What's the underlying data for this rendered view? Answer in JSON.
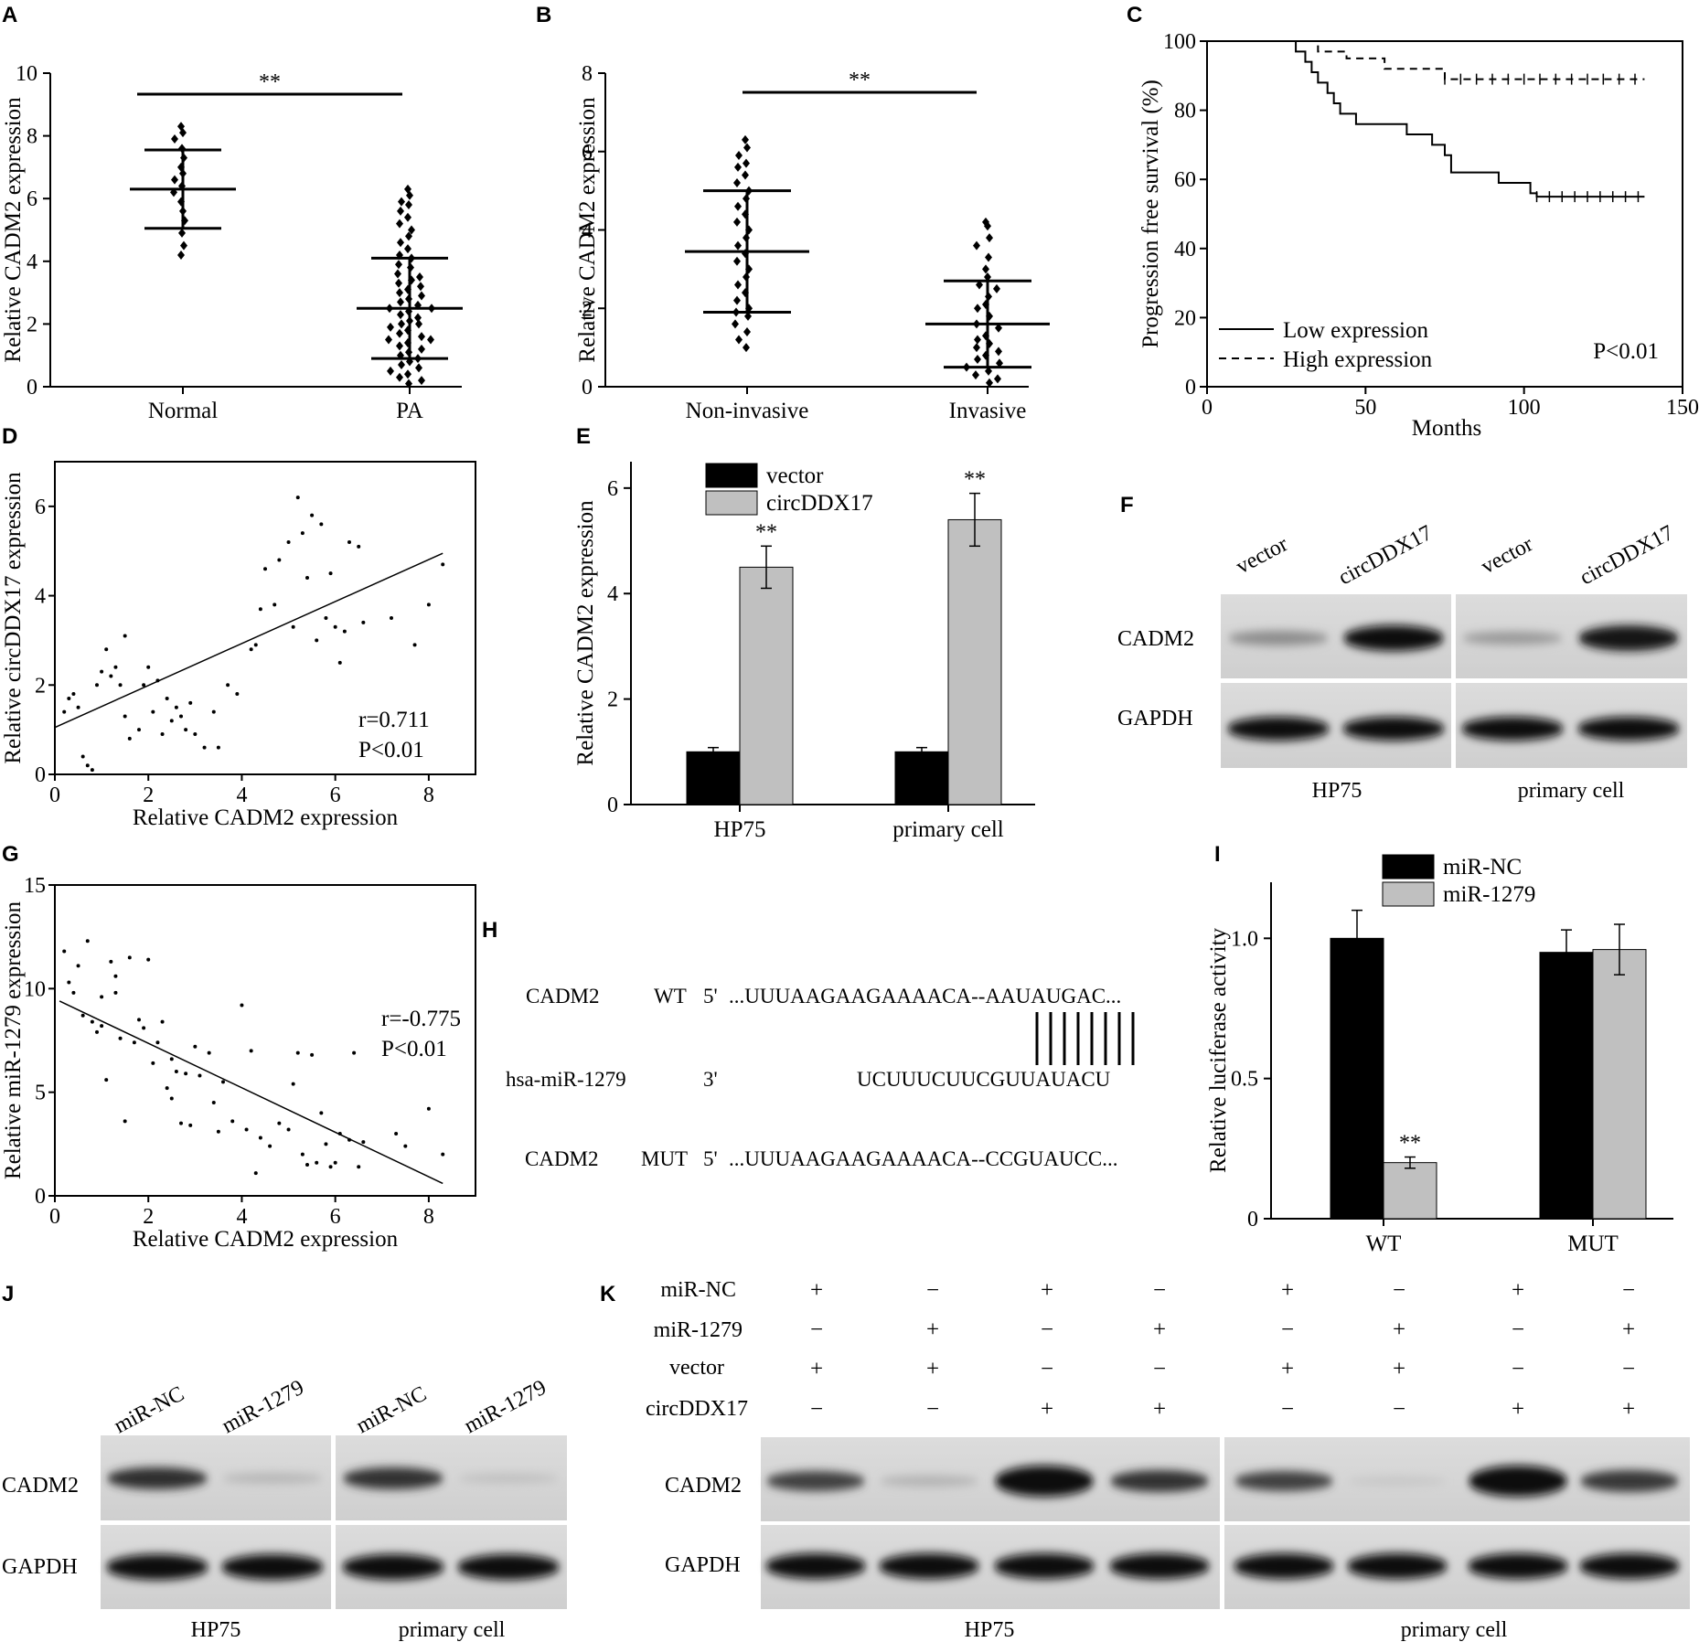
{
  "chart_data": [
    {
      "panel": "A",
      "type": "scatter",
      "ylabel": "Relative CADM2 expression",
      "categories": [
        "Normal",
        "PA"
      ],
      "ylim": [
        0,
        10
      ],
      "yticks": [
        0,
        2,
        4,
        6,
        8,
        10
      ],
      "significance": "**",
      "groups": [
        {
          "name": "Normal",
          "mean": 6.3,
          "sd": 1.25,
          "points": [
            8.3,
            8.1,
            7.9,
            7.6,
            7.3,
            7.0,
            6.8,
            6.6,
            6.4,
            6.2,
            5.9,
            5.6,
            5.3,
            4.9,
            4.5,
            4.2
          ]
        },
        {
          "name": "PA",
          "mean": 2.5,
          "sd": 1.6,
          "points": [
            6.3,
            6.1,
            5.9,
            5.8,
            5.6,
            5.4,
            5.2,
            5.0,
            4.8,
            4.6,
            4.4,
            4.2,
            4.1,
            3.9,
            3.8,
            3.6,
            3.5,
            3.4,
            3.3,
            3.2,
            3.1,
            3.0,
            2.9,
            2.8,
            2.7,
            2.6,
            2.5,
            2.5,
            2.4,
            2.3,
            2.2,
            2.1,
            2.0,
            2.0,
            1.9,
            1.8,
            1.7,
            1.6,
            1.5,
            1.5,
            1.4,
            1.3,
            1.2,
            1.1,
            1.0,
            0.9,
            0.8,
            0.7,
            0.6,
            0.5,
            0.4,
            0.3,
            0.2,
            0.1
          ]
        }
      ]
    },
    {
      "panel": "B",
      "type": "scatter",
      "ylabel": "Relative CADM2 expression",
      "categories": [
        "Non-invasive",
        "Invasive"
      ],
      "ylim": [
        0,
        8
      ],
      "yticks": [
        0,
        2,
        4,
        6,
        8
      ],
      "significance": "**",
      "groups": [
        {
          "name": "Non-invasive",
          "mean": 3.45,
          "sd": 1.55,
          "points": [
            6.3,
            6.1,
            5.9,
            5.7,
            5.6,
            5.4,
            5.2,
            5.0,
            4.8,
            4.6,
            4.4,
            4.2,
            4.0,
            3.8,
            3.6,
            3.4,
            3.2,
            3.0,
            2.8,
            2.6,
            2.4,
            2.2,
            2.0,
            1.9,
            1.8,
            1.6,
            1.4,
            1.2,
            1.0
          ]
        },
        {
          "name": "Invasive",
          "mean": 1.6,
          "sd": 1.1,
          "points": [
            4.2,
            4.1,
            3.8,
            3.6,
            3.3,
            3.0,
            2.8,
            2.6,
            2.5,
            2.3,
            2.1,
            2.0,
            1.8,
            1.6,
            1.5,
            1.3,
            1.2,
            1.1,
            1.0,
            0.9,
            0.8,
            0.7,
            0.6,
            0.5,
            0.4,
            0.3,
            0.2,
            0.1
          ]
        }
      ]
    },
    {
      "panel": "C",
      "type": "line",
      "xlabel": "Months",
      "ylabel": "Progression free survival (%)",
      "xlim": [
        0,
        150
      ],
      "ylim": [
        0,
        100
      ],
      "xticks": [
        0,
        50,
        100,
        150
      ],
      "yticks": [
        0,
        20,
        40,
        60,
        80,
        100
      ],
      "annotation": "P<0.01",
      "series": [
        {
          "name": "Low expression",
          "style": "solid",
          "x": [
            0,
            24,
            28,
            31,
            33,
            35,
            38,
            40,
            42,
            44,
            47,
            52,
            63,
            66,
            71,
            75,
            77,
            85,
            92,
            96,
            102,
            104,
            138
          ],
          "y": [
            100,
            100,
            97,
            94,
            91,
            88,
            85,
            82,
            79,
            79,
            76,
            76,
            73,
            73,
            70,
            67,
            62,
            62,
            59,
            59,
            56,
            55,
            55
          ]
        },
        {
          "name": "High expression",
          "style": "dashed",
          "x": [
            0,
            28,
            35,
            44,
            56,
            75,
            138
          ],
          "y": [
            100,
            100,
            97,
            95,
            92,
            89,
            89
          ]
        }
      ]
    },
    {
      "panel": "D",
      "type": "scatter",
      "xlabel": "Relative CADM2 expression",
      "ylabel": "Relative circDDX17 expression",
      "xlim": [
        0,
        9
      ],
      "ylim": [
        0,
        7
      ],
      "xticks": [
        0,
        2,
        4,
        6,
        8
      ],
      "yticks": [
        0,
        2,
        4,
        6
      ],
      "annotations": [
        "r=0.711",
        "P<0.01"
      ],
      "fit": {
        "x": [
          0,
          8.3
        ],
        "y": [
          1.05,
          4.95
        ]
      },
      "points": [
        [
          0.2,
          1.4
        ],
        [
          0.3,
          1.7
        ],
        [
          0.4,
          1.8
        ],
        [
          0.5,
          1.5
        ],
        [
          0.6,
          0.4
        ],
        [
          0.7,
          0.2
        ],
        [
          0.8,
          0.1
        ],
        [
          0.9,
          2.0
        ],
        [
          1.0,
          2.3
        ],
        [
          1.1,
          2.8
        ],
        [
          1.2,
          2.2
        ],
        [
          1.3,
          2.4
        ],
        [
          1.4,
          2.0
        ],
        [
          1.5,
          3.1
        ],
        [
          1.5,
          1.3
        ],
        [
          1.6,
          0.8
        ],
        [
          1.8,
          1.0
        ],
        [
          1.9,
          2.0
        ],
        [
          2.0,
          2.4
        ],
        [
          2.1,
          1.4
        ],
        [
          2.2,
          2.1
        ],
        [
          2.3,
          0.9
        ],
        [
          2.4,
          1.7
        ],
        [
          2.5,
          1.2
        ],
        [
          2.6,
          1.5
        ],
        [
          2.7,
          1.3
        ],
        [
          2.8,
          1.0
        ],
        [
          2.9,
          1.6
        ],
        [
          3.0,
          0.9
        ],
        [
          3.2,
          0.6
        ],
        [
          3.4,
          1.4
        ],
        [
          3.5,
          0.6
        ],
        [
          3.7,
          2.0
        ],
        [
          3.9,
          1.8
        ],
        [
          4.2,
          2.8
        ],
        [
          4.3,
          2.9
        ],
        [
          4.4,
          3.7
        ],
        [
          4.5,
          4.6
        ],
        [
          4.7,
          3.8
        ],
        [
          4.8,
          4.8
        ],
        [
          5.0,
          5.2
        ],
        [
          5.1,
          3.3
        ],
        [
          5.2,
          6.2
        ],
        [
          5.3,
          5.4
        ],
        [
          5.4,
          4.4
        ],
        [
          5.5,
          5.8
        ],
        [
          5.6,
          3.0
        ],
        [
          5.7,
          5.6
        ],
        [
          5.8,
          3.5
        ],
        [
          5.9,
          4.5
        ],
        [
          6.0,
          3.3
        ],
        [
          6.1,
          2.5
        ],
        [
          6.2,
          3.2
        ],
        [
          6.3,
          5.2
        ],
        [
          6.5,
          5.1
        ],
        [
          6.6,
          3.4
        ],
        [
          7.2,
          3.5
        ],
        [
          7.7,
          2.9
        ],
        [
          8.0,
          3.8
        ],
        [
          8.3,
          4.7
        ]
      ]
    },
    {
      "panel": "E",
      "type": "bar",
      "ylabel": "Relative CADM2 expression",
      "categories": [
        "HP75",
        "primary cell"
      ],
      "ylim": [
        0,
        6.5
      ],
      "yticks": [
        0,
        2,
        4,
        6
      ],
      "series": [
        {
          "name": "vector",
          "color": "#000000",
          "values": [
            1.0,
            1.0
          ],
          "errors": [
            0.08,
            0.08
          ]
        },
        {
          "name": "circDDX17",
          "color": "#c0c0c0",
          "values": [
            4.5,
            5.4
          ],
          "errors": [
            0.4,
            0.5
          ],
          "significance": [
            "**",
            "**"
          ]
        }
      ]
    },
    {
      "panel": "G",
      "type": "scatter",
      "xlabel": "Relative CADM2 expression",
      "ylabel": "Relative miR-1279 expression",
      "xlim": [
        0,
        9
      ],
      "ylim": [
        0,
        15
      ],
      "xticks": [
        0,
        2,
        4,
        6,
        8
      ],
      "yticks": [
        0,
        5,
        10,
        15
      ],
      "annotations": [
        "r=-0.775",
        "P<0.01"
      ],
      "fit": {
        "x": [
          0.1,
          8.3
        ],
        "y": [
          9.4,
          0.6
        ]
      },
      "points": [
        [
          0.2,
          11.8
        ],
        [
          0.3,
          10.3
        ],
        [
          0.4,
          9.8
        ],
        [
          0.5,
          11.1
        ],
        [
          0.6,
          8.7
        ],
        [
          0.7,
          12.3
        ],
        [
          0.8,
          8.4
        ],
        [
          0.9,
          7.9
        ],
        [
          1.0,
          8.2
        ],
        [
          1.0,
          9.6
        ],
        [
          1.1,
          5.6
        ],
        [
          1.2,
          11.3
        ],
        [
          1.3,
          10.6
        ],
        [
          1.3,
          9.8
        ],
        [
          1.4,
          7.6
        ],
        [
          1.5,
          3.6
        ],
        [
          1.6,
          11.5
        ],
        [
          1.7,
          7.4
        ],
        [
          1.8,
          8.5
        ],
        [
          1.9,
          8.1
        ],
        [
          2.0,
          11.4
        ],
        [
          2.1,
          6.4
        ],
        [
          2.2,
          7.4
        ],
        [
          2.3,
          8.4
        ],
        [
          2.4,
          5.2
        ],
        [
          2.5,
          6.6
        ],
        [
          2.5,
          4.7
        ],
        [
          2.6,
          6.0
        ],
        [
          2.7,
          3.5
        ],
        [
          2.8,
          5.9
        ],
        [
          2.9,
          3.4
        ],
        [
          3.0,
          7.2
        ],
        [
          3.1,
          5.8
        ],
        [
          3.3,
          6.9
        ],
        [
          3.4,
          4.5
        ],
        [
          3.5,
          3.1
        ],
        [
          3.6,
          5.5
        ],
        [
          3.8,
          3.6
        ],
        [
          4.0,
          9.2
        ],
        [
          4.1,
          3.2
        ],
        [
          4.2,
          7.0
        ],
        [
          4.3,
          1.1
        ],
        [
          4.4,
          2.8
        ],
        [
          4.6,
          2.4
        ],
        [
          4.8,
          3.5
        ],
        [
          5.0,
          3.2
        ],
        [
          5.1,
          5.4
        ],
        [
          5.2,
          6.9
        ],
        [
          5.3,
          2.0
        ],
        [
          5.4,
          1.5
        ],
        [
          5.5,
          6.8
        ],
        [
          5.6,
          1.6
        ],
        [
          5.7,
          4.0
        ],
        [
          5.8,
          2.5
        ],
        [
          5.9,
          1.4
        ],
        [
          6.0,
          1.6
        ],
        [
          6.1,
          3.0
        ],
        [
          6.3,
          2.7
        ],
        [
          6.4,
          6.9
        ],
        [
          6.5,
          1.4
        ],
        [
          6.6,
          2.6
        ],
        [
          7.3,
          3.0
        ],
        [
          7.5,
          2.4
        ],
        [
          8.0,
          4.2
        ],
        [
          8.3,
          2.0
        ]
      ]
    },
    {
      "panel": "I",
      "type": "bar",
      "ylabel": "Relative luciferase activity",
      "categories": [
        "WT",
        "MUT"
      ],
      "ylim": [
        0,
        1.2
      ],
      "yticks": [
        0,
        0.5,
        1.0
      ],
      "yticklabels": [
        "0",
        "0.5",
        "1.0"
      ],
      "series": [
        {
          "name": "miR-NC",
          "color": "#000000",
          "values": [
            1.0,
            0.95
          ],
          "errors": [
            0.1,
            0.08
          ]
        },
        {
          "name": "miR-1279",
          "color": "#c0c0c0",
          "values": [
            0.2,
            0.96
          ],
          "errors": [
            0.02,
            0.09
          ],
          "significance": [
            "**",
            ""
          ]
        }
      ]
    }
  ],
  "sequences": {
    "panel": "H",
    "rows": [
      {
        "gene": "CADM2",
        "type": "WT",
        "end": "5'",
        "seq": "...UUUAAGAAGAAAACA--AAUAUGAC..."
      },
      {
        "gene": "hsa-miR-1279",
        "type": "",
        "end": "3'",
        "seq": "UCUUUCUUCGUUAUACU"
      },
      {
        "gene": "CADM2",
        "type": "MUT",
        "end": "5'",
        "seq": "...UUUAAGAAGAAAACA--CCGUAUCC..."
      }
    ],
    "pairing_bars": 8
  },
  "blots": {
    "F": {
      "columns": [
        "vector",
        "circDDX17",
        "vector",
        "circDDX17"
      ],
      "rows": [
        "CADM2",
        "GAPDH"
      ],
      "groups": [
        "HP75",
        "primary cell"
      ]
    },
    "J": {
      "columns": [
        "miR-NC",
        "miR-1279",
        "miR-NC",
        "miR-1279"
      ],
      "rows": [
        "CADM2",
        "GAPDH"
      ],
      "groups": [
        "HP75",
        "primary cell"
      ]
    },
    "K": {
      "rows": [
        "CADM2",
        "GAPDH"
      ],
      "groups": [
        "HP75",
        "primary cell"
      ],
      "conditions": [
        {
          "label": "miR-NC",
          "signs": [
            "+",
            "−",
            "+",
            "−",
            "+",
            "−",
            "+",
            "−"
          ]
        },
        {
          "label": "miR-1279",
          "signs": [
            "−",
            "+",
            "−",
            "+",
            "−",
            "+",
            "−",
            "+"
          ]
        },
        {
          "label": "vector",
          "signs": [
            "+",
            "+",
            "−",
            "−",
            "+",
            "+",
            "−",
            "−"
          ]
        },
        {
          "label": "circDDX17",
          "signs": [
            "−",
            "−",
            "+",
            "+",
            "−",
            "−",
            "+",
            "+"
          ]
        }
      ]
    }
  },
  "panel_letters": [
    "A",
    "B",
    "C",
    "D",
    "E",
    "F",
    "G",
    "H",
    "I",
    "J",
    "K"
  ]
}
